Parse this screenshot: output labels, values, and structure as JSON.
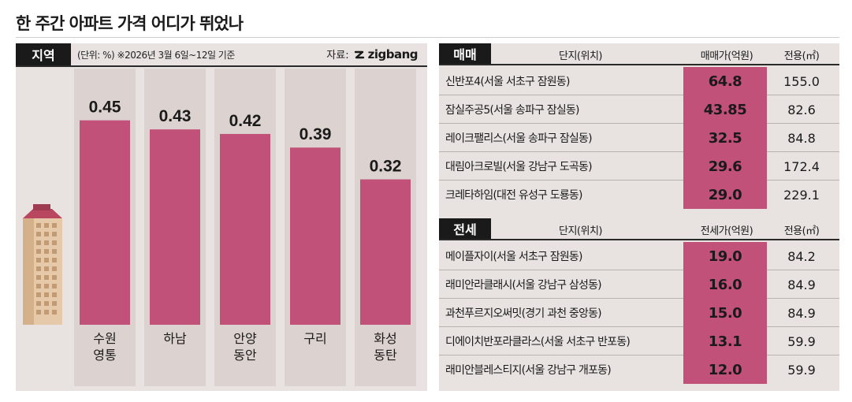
{
  "title": "한 주간 아파트 가격 어디가 뛰었나",
  "left": {
    "tag": "지역",
    "unit_note": "(단위: %)  ※2026년 3월 6일~12일 기준",
    "source_label": "자료:",
    "source_logo": "zigbang",
    "source_logo_icon": "zigbang-logo-icon"
  },
  "chart_data": {
    "type": "bar",
    "categories": [
      [
        "수원",
        "영통"
      ],
      [
        "하남"
      ],
      [
        "안양",
        "동안"
      ],
      [
        "구리"
      ],
      [
        "화성",
        "동탄"
      ]
    ],
    "values": [
      0.45,
      0.43,
      0.42,
      0.39,
      0.32
    ],
    "value_labels": [
      "0.45",
      "0.43",
      "0.42",
      "0.39",
      "0.32"
    ],
    "unit": "%",
    "ylim": [
      0,
      0.55
    ],
    "grid": false,
    "bar_color": "#c2517a",
    "column_bg": "#dcd2cf"
  },
  "sale": {
    "tag": "매매",
    "col_complex": "단지(위치)",
    "col_price": "매매가(억원)",
    "col_area": "전용(㎡)",
    "rows": [
      {
        "name": "신반포4(서울 서초구 잠원동)",
        "price": "64.8",
        "area": "155.0"
      },
      {
        "name": "잠실주공5(서울 송파구 잠실동)",
        "price": "43.85",
        "area": "82.6"
      },
      {
        "name": "레이크팰리스(서울 송파구 잠실동)",
        "price": "32.5",
        "area": "84.8"
      },
      {
        "name": "대림아크로빌(서울 강남구 도곡동)",
        "price": "29.6",
        "area": "172.4"
      },
      {
        "name": "크레타하임(대전 유성구 도룡동)",
        "price": "29.0",
        "area": "229.1"
      }
    ]
  },
  "jeonse": {
    "tag": "전세",
    "col_complex": "단지(위치)",
    "col_price": "전세가(억원)",
    "col_area": "전용(㎡)",
    "rows": [
      {
        "name": "메이플자이(서울 서초구 잠원동)",
        "price": "19.0",
        "area": "84.2"
      },
      {
        "name": "래미안라클래시(서울 강남구 삼성동)",
        "price": "16.0",
        "area": "84.9"
      },
      {
        "name": "과천푸르지오써밋(경기 과천 중앙동)",
        "price": "15.0",
        "area": "84.9"
      },
      {
        "name": "디에이치반포라클라스(서울 서초구 반포동)",
        "price": "13.1",
        "area": "59.9"
      },
      {
        "name": "래미안블레스티지(서울 강남구 개포동)",
        "price": "12.0",
        "area": "59.9"
      }
    ]
  },
  "colors": {
    "accent": "#c2517a",
    "panel_bg": "#e8e3e1",
    "tag_bg": "#1a1a1a"
  }
}
